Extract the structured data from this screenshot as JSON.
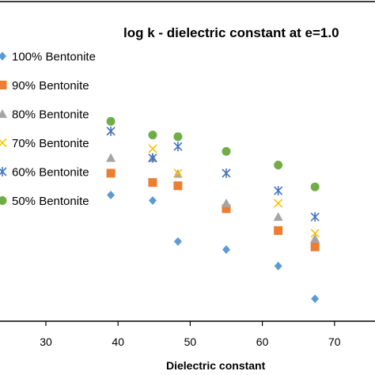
{
  "chart_data": {
    "type": "scatter",
    "title": "log k - dielectric constant at e=1.0",
    "xlabel": "Dielectric constant",
    "ylabel": "",
    "xlim": [
      20,
      80
    ],
    "x_ticks": [
      "30",
      "40",
      "50",
      "60",
      "70"
    ],
    "legend_position": "left",
    "series": [
      {
        "name": "100% Bentonite",
        "marker": "diamond",
        "color": "#5B9BD5",
        "points": [
          [
            39.0,
            -0.95
          ],
          [
            44.8,
            -1.05
          ],
          [
            48.3,
            -1.8
          ],
          [
            55.0,
            -1.95
          ],
          [
            62.2,
            -2.25
          ],
          [
            67.3,
            -2.85
          ]
        ]
      },
      {
        "name": "90% Bentonite",
        "marker": "square",
        "color": "#ED7D31",
        "points": [
          [
            39.0,
            -0.55
          ],
          [
            44.8,
            -0.72
          ],
          [
            48.3,
            -0.78
          ],
          [
            55.0,
            -1.2
          ],
          [
            62.2,
            -1.6
          ],
          [
            67.3,
            -1.9
          ]
        ]
      },
      {
        "name": "80% Bentonite",
        "marker": "triangle",
        "color": "#A5A5A5",
        "points": [
          [
            39.0,
            -0.27
          ],
          [
            44.8,
            -0.27
          ],
          [
            48.3,
            -0.56
          ],
          [
            55.0,
            -1.1
          ],
          [
            62.2,
            -1.35
          ],
          [
            67.3,
            -1.75
          ]
        ]
      },
      {
        "name": "70% Bentonite",
        "marker": "x",
        "color": "#FFC000",
        "points": [
          [
            39.0,
            0.22
          ],
          [
            44.8,
            -0.1
          ],
          [
            48.3,
            -0.55
          ],
          [
            55.0,
            -0.55
          ],
          [
            62.2,
            -1.1
          ],
          [
            67.3,
            -1.65
          ]
        ]
      },
      {
        "name": "60% Bentonite",
        "marker": "star",
        "color": "#4472C4",
        "points": [
          [
            39.0,
            0.22
          ],
          [
            44.8,
            -0.27
          ],
          [
            48.3,
            -0.06
          ],
          [
            55.0,
            -0.55
          ],
          [
            62.2,
            -0.87
          ],
          [
            67.3,
            -1.35
          ]
        ]
      },
      {
        "name": "50% Bentonite",
        "marker": "circle",
        "color": "#70AD47",
        "points": [
          [
            39.0,
            0.4
          ],
          [
            44.8,
            0.15
          ],
          [
            48.3,
            0.12
          ],
          [
            55.0,
            -0.15
          ],
          [
            62.2,
            -0.4
          ],
          [
            67.3,
            -0.8
          ]
        ]
      }
    ]
  }
}
